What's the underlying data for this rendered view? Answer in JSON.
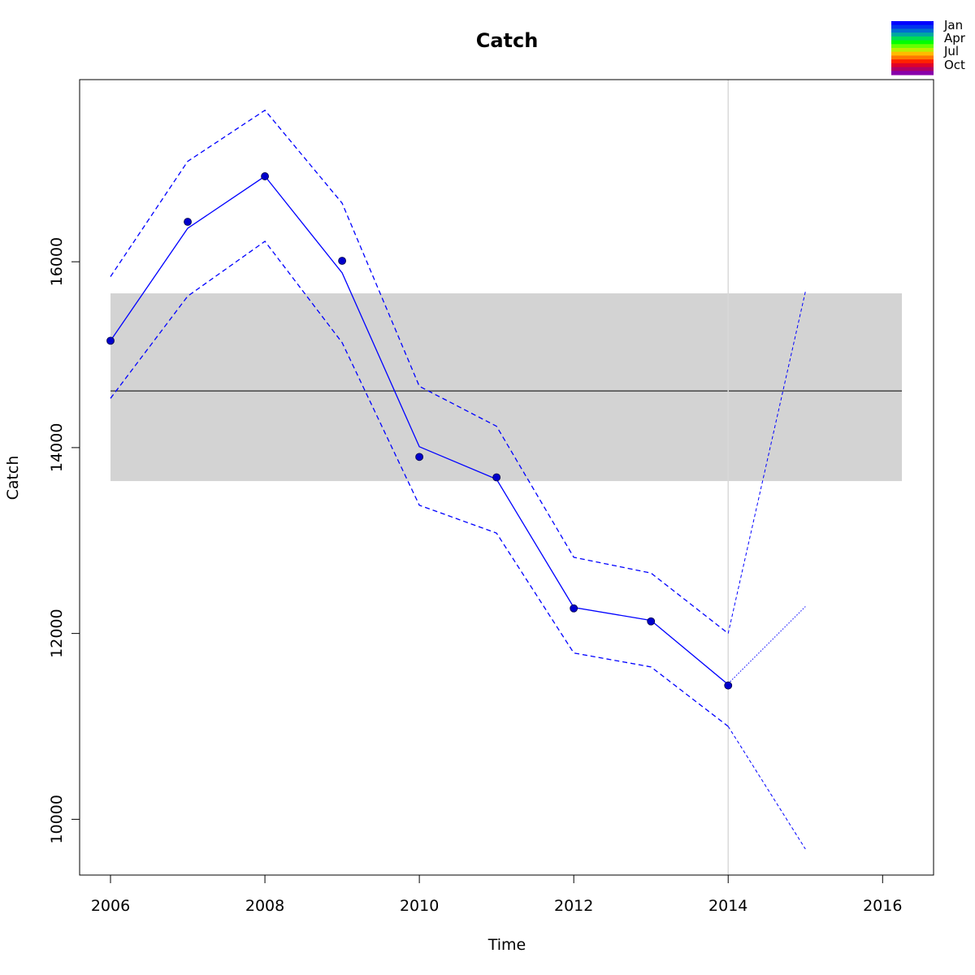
{
  "chart_data": {
    "type": "line",
    "title": "Catch",
    "xlabel": "Time",
    "ylabel": "Catch",
    "xlim": [
      2005.6,
      2016.66
    ],
    "ylim": [
      9400,
      17960
    ],
    "x_ticks": [
      2006,
      2008,
      2010,
      2012,
      2014,
      2016
    ],
    "x_tick_labels": [
      "2006",
      "2008",
      "2010",
      "2012",
      "2014",
      "2016"
    ],
    "y_ticks": [
      10000,
      12000,
      14000,
      16000
    ],
    "y_tick_labels": [
      "10000",
      "12000",
      "14000",
      "16000"
    ],
    "grid": false,
    "colors": {
      "series": "#0000ff",
      "points": "#0000cc",
      "band": "#d3d3d3",
      "mean_line": "#000000",
      "vline": "#d9d9d9"
    },
    "reference_band": {
      "x_range": [
        2006,
        2016.25
      ],
      "lower": 13640,
      "upper": 15660,
      "mean": 14610
    },
    "vertical_line": {
      "x": 2014
    },
    "observed": {
      "x": [
        2006,
        2007,
        2008,
        2009,
        2010,
        2011,
        2012,
        2013,
        2014
      ],
      "y": [
        15150,
        16430,
        16920,
        16010,
        13900,
        13680,
        12270,
        12130,
        11440
      ]
    },
    "series": [
      {
        "role": "fit",
        "style": "solid",
        "x": [
          2006,
          2007,
          2008,
          2009,
          2010,
          2011,
          2012,
          2013,
          2014
        ],
        "y": [
          15150,
          16360,
          16920,
          15880,
          14010,
          13660,
          12280,
          12140,
          11450
        ]
      },
      {
        "role": "upper",
        "style": "dashed",
        "x": [
          2006,
          2007,
          2008,
          2009,
          2010,
          2011,
          2012,
          2013,
          2014
        ],
        "y": [
          15840,
          17080,
          17630,
          16630,
          14660,
          14230,
          12820,
          12650,
          12000
        ]
      },
      {
        "role": "lower",
        "style": "dashed",
        "x": [
          2006,
          2007,
          2008,
          2009,
          2010,
          2011,
          2012,
          2013,
          2014
        ],
        "y": [
          14530,
          15630,
          16220,
          15130,
          13380,
          13080,
          11790,
          11640,
          11000
        ]
      },
      {
        "role": "forecast-upper",
        "style": "dashed-fine",
        "x": [
          2014,
          2015
        ],
        "y": [
          12000,
          15680
        ]
      },
      {
        "role": "forecast-mean",
        "style": "dotted",
        "x": [
          2014,
          2015
        ],
        "y": [
          11460,
          12290
        ]
      },
      {
        "role": "forecast-lower",
        "style": "dashed-fine",
        "x": [
          2014,
          2015
        ],
        "y": [
          11000,
          9680
        ]
      }
    ],
    "legend": {
      "position": "top-right",
      "labels": [
        "Jan",
        "Apr",
        "Jul",
        "Oct"
      ],
      "colors": [
        "#0000ff",
        "#0033ee",
        "#006ed0",
        "#00a8a0",
        "#00dd55",
        "#00ff00",
        "#66ff00",
        "#bbee00",
        "#ffbb00",
        "#ff7700",
        "#ff2200",
        "#e0002a",
        "#b00066",
        "#8800aa"
      ]
    }
  }
}
